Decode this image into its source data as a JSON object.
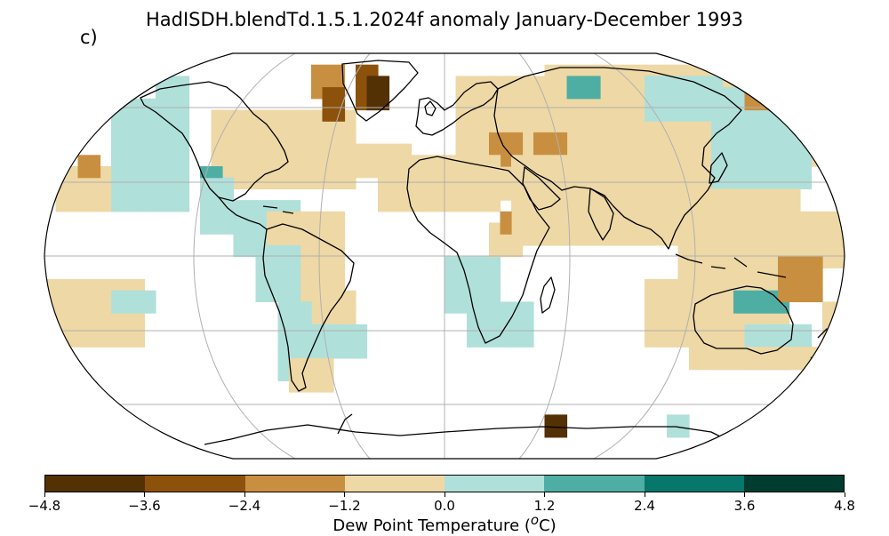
{
  "header": {
    "title": "HadISDH.blendTd.1.5.1.2024f anomaly January-December 1993",
    "panel_label": "c)"
  },
  "colorbar": {
    "label_text": "Dew Point Temperature (",
    "label_super": "o",
    "label_unit": "C)",
    "ticks": [
      "−4.8",
      "−3.6",
      "−2.4",
      "−1.2",
      "0.0",
      "1.2",
      "2.4",
      "3.6",
      "4.8"
    ],
    "tick_values": [
      -4.8,
      -3.6,
      -2.4,
      -1.2,
      0.0,
      1.2,
      2.4,
      3.6,
      4.8
    ],
    "colors": [
      "#543005",
      "#8c510a",
      "#c98f40",
      "#eed8a5",
      "#b0e0da",
      "#4eaea3",
      "#07766b",
      "#003c30"
    ]
  },
  "map": {
    "projection": "Robinson",
    "gridlines": true
  },
  "chart_data": {
    "type": "heatmap",
    "title": "HadISDH.blendTd.1.5.1.2024f anomaly January-December 1993",
    "colorbar_label": "Dew Point Temperature (oC)",
    "vmin": -4.8,
    "vmax": 4.8,
    "bins": [
      -4.8,
      -3.6,
      -2.4,
      -1.2,
      0.0,
      1.2,
      2.4,
      3.6,
      4.8
    ]
  }
}
